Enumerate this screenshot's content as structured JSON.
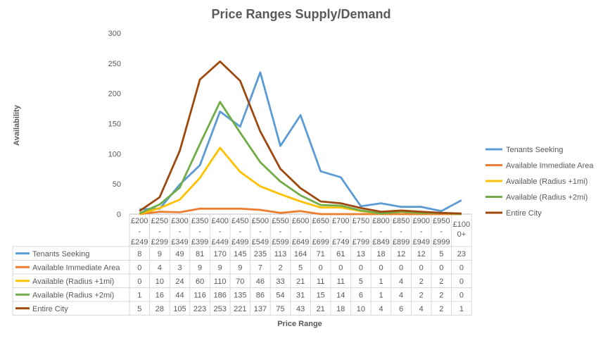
{
  "chart_data": {
    "type": "line",
    "title": "Price Ranges Supply/Demand",
    "xlabel": "Price Range",
    "ylabel": "Availability",
    "ylim": [
      0,
      300
    ],
    "yticks": [
      0,
      50,
      100,
      150,
      200,
      250,
      300
    ],
    "grid": false,
    "legend_placement": "right",
    "categories": [
      [
        "£200",
        "-",
        "£249"
      ],
      [
        "£250",
        "-",
        "£299"
      ],
      [
        "£300",
        "-",
        "£349"
      ],
      [
        "£350",
        "-",
        "£399"
      ],
      [
        "£400",
        "-",
        "£449"
      ],
      [
        "£450",
        "-",
        "£499"
      ],
      [
        "£500",
        "-",
        "£549"
      ],
      [
        "£550",
        "-",
        "£599"
      ],
      [
        "£600",
        "-",
        "£649"
      ],
      [
        "£650",
        "-",
        "£699"
      ],
      [
        "£700",
        "-",
        "£749"
      ],
      [
        "£750",
        "-",
        "£799"
      ],
      [
        "£800",
        "-",
        "£849"
      ],
      [
        "£850",
        "-",
        "£899"
      ],
      [
        "£900",
        "-",
        "£949"
      ],
      [
        "£950",
        "-",
        "£999"
      ],
      [
        "£100",
        "0+"
      ]
    ],
    "series": [
      {
        "name": "Tenants Seeking",
        "color": "#5b9bd5",
        "values": [
          8,
          9,
          49,
          81,
          170,
          145,
          235,
          113,
          164,
          71,
          61,
          13,
          18,
          12,
          12,
          5,
          23
        ]
      },
      {
        "name": "Available Immediate Area",
        "color": "#ed7d31",
        "values": [
          0,
          4,
          3,
          9,
          9,
          9,
          7,
          2,
          5,
          0,
          0,
          0,
          0,
          0,
          0,
          0,
          0
        ]
      },
      {
        "name": "Available (Radius +1mi)",
        "color": "#ffc000",
        "values": [
          0,
          10,
          24,
          60,
          110,
          70,
          46,
          33,
          21,
          11,
          11,
          5,
          1,
          4,
          2,
          2,
          0
        ]
      },
      {
        "name": "Available (Radius +2mi)",
        "color": "#70ad47",
        "values": [
          1,
          16,
          44,
          116,
          186,
          135,
          86,
          54,
          31,
          15,
          14,
          6,
          1,
          4,
          2,
          2,
          0
        ]
      },
      {
        "name": "Entire City",
        "color": "#9e480e",
        "values": [
          5,
          28,
          105,
          223,
          253,
          221,
          137,
          75,
          43,
          21,
          18,
          10,
          4,
          6,
          4,
          2,
          1
        ]
      }
    ]
  }
}
